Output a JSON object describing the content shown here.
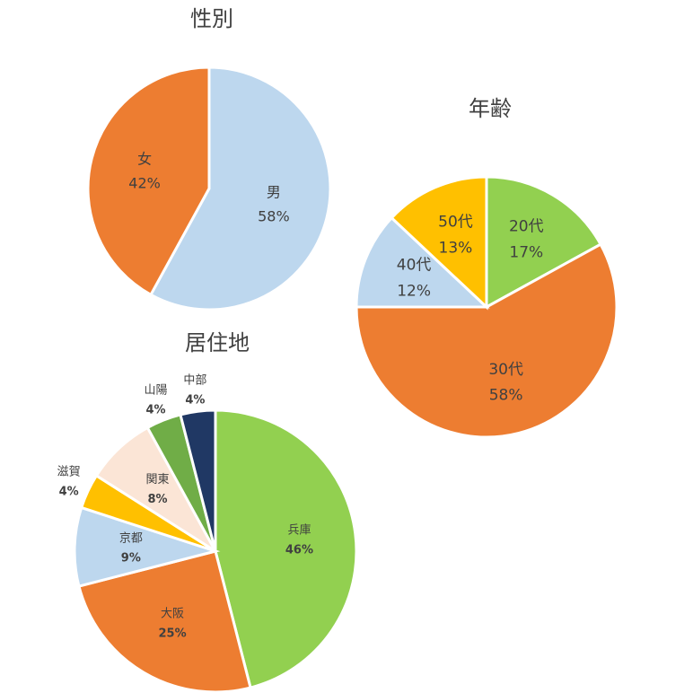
{
  "chart_data": [
    {
      "type": "pie",
      "title": "性別",
      "categories": [
        "男",
        "女"
      ],
      "values": [
        58,
        42
      ],
      "value_labels": [
        "58%",
        "42%"
      ],
      "colors": [
        "#bdd7ee",
        "#ed7d31"
      ]
    },
    {
      "type": "pie",
      "title": "年齢",
      "categories": [
        "20代",
        "30代",
        "40代",
        "50代"
      ],
      "values": [
        17,
        58,
        12,
        13
      ],
      "value_labels": [
        "17%",
        "58%",
        "12%",
        "13%"
      ],
      "colors": [
        "#92d050",
        "#ed7d31",
        "#bdd7ee",
        "#ffc000"
      ]
    },
    {
      "type": "pie",
      "title": "居住地",
      "categories": [
        "兵庫",
        "大阪",
        "京都",
        "滋賀",
        "関東",
        "山陽",
        "中部"
      ],
      "values": [
        46,
        25,
        9,
        4,
        8,
        4,
        4
      ],
      "value_labels": [
        "46%",
        "25%",
        "9%",
        "4%",
        "8%",
        "4%",
        "4%"
      ],
      "colors": [
        "#92d050",
        "#ed7d31",
        "#bdd7ee",
        "#ffc000",
        "#fbe5d6",
        "#70ad47",
        "#203864"
      ]
    }
  ]
}
